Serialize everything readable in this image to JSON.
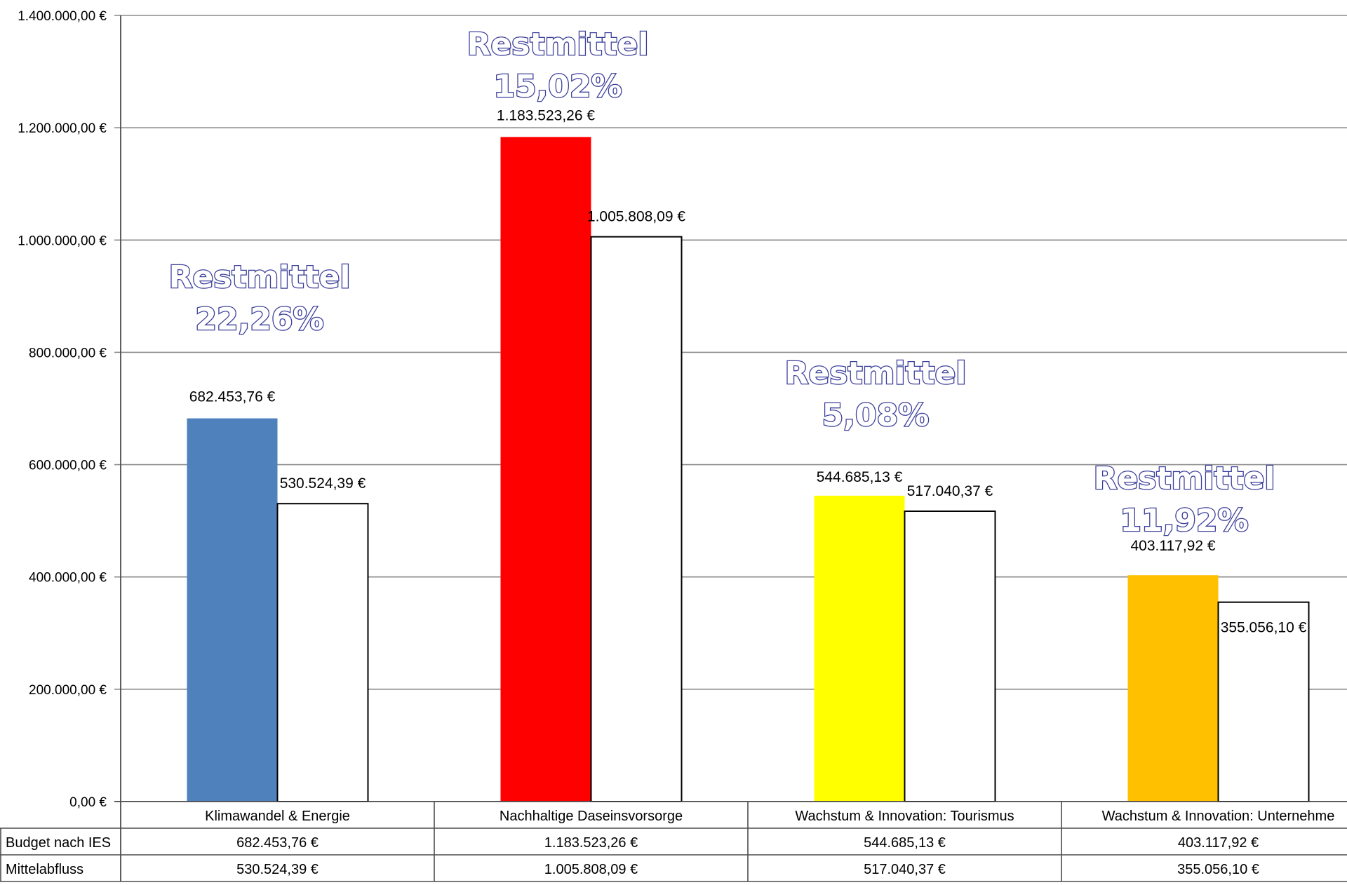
{
  "chart_data": {
    "type": "bar",
    "categories": [
      "Klimawandel & Energie",
      "Nachhaltige Daseinsvorsorge",
      "Wachstum & Innovation: Tourismus",
      "Wachstum & Innovation: Unternehme"
    ],
    "series": [
      {
        "name": "Budget nach IES",
        "values": [
          682453.76,
          1183523.26,
          544685.13,
          403117.92
        ],
        "labels": [
          "682.453,76 €",
          "1.183.523,26 €",
          "544.685,13 €",
          "403.117,92 €"
        ],
        "colors": [
          "#4f81bd",
          "#ff0000",
          "#ffff00",
          "#ffc000"
        ]
      },
      {
        "name": "Mittelabfluss",
        "values": [
          530524.39,
          1005808.09,
          517040.37,
          355056.1
        ],
        "labels": [
          "530.524,39 €",
          "1.005.808,09 €",
          "517.040,37 €",
          "355.056,10 €"
        ],
        "colors": [
          "#ffffff",
          "#ffffff",
          "#ffffff",
          "#ffffff"
        ]
      }
    ],
    "annotations": [
      {
        "title": "Restmittel",
        "value": "22,26%"
      },
      {
        "title": "Restmittel",
        "value": "15,02%"
      },
      {
        "title": "Restmittel",
        "value": "5,08%"
      },
      {
        "title": "Restmittel",
        "value": "11,92%"
      }
    ],
    "yticks": [
      "0,00 €",
      "200.000,00 €",
      "400.000,00 €",
      "600.000,00 €",
      "800.000,00 €",
      "1.000.000,00 €",
      "1.200.000,00 €",
      "1.400.000,00 €"
    ],
    "ylim": [
      0,
      1400000
    ],
    "grid": true,
    "legend": "data table below chart"
  }
}
